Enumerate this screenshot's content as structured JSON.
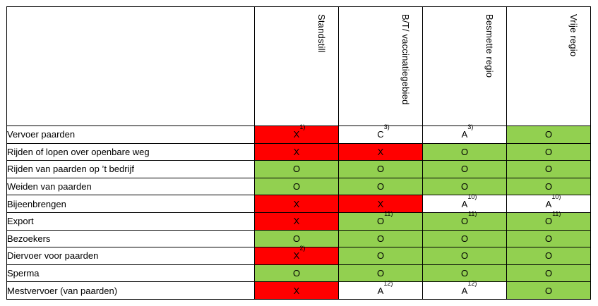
{
  "colors": {
    "red": "#ff0000",
    "green": "#92d050",
    "white": "#ffffff"
  },
  "columns": [
    "Standstill",
    "B/T/ vaccinatiegebied",
    "Besmette regio",
    "Vrije regio"
  ],
  "rows": [
    {
      "label": "Vervoer paarden",
      "cells": [
        {
          "v": "X",
          "n": "1)",
          "c": "red"
        },
        {
          "v": "C",
          "n": "3)",
          "c": "white"
        },
        {
          "v": "A",
          "n": "3)",
          "c": "white"
        },
        {
          "v": "O",
          "n": "",
          "c": "green"
        }
      ]
    },
    {
      "label": "Rijden of lopen over openbare weg",
      "cells": [
        {
          "v": "X",
          "n": "",
          "c": "red"
        },
        {
          "v": "X",
          "n": "",
          "c": "red"
        },
        {
          "v": "O",
          "n": "",
          "c": "green"
        },
        {
          "v": "O",
          "n": "",
          "c": "green"
        }
      ]
    },
    {
      "label": "Rijden van paarden op ’t bedrijf",
      "cells": [
        {
          "v": "O",
          "n": "",
          "c": "green"
        },
        {
          "v": "O",
          "n": "",
          "c": "green"
        },
        {
          "v": "O",
          "n": "",
          "c": "green"
        },
        {
          "v": "O",
          "n": "",
          "c": "green"
        }
      ]
    },
    {
      "label": "Weiden van paarden",
      "cells": [
        {
          "v": "O",
          "n": "",
          "c": "green"
        },
        {
          "v": "O",
          "n": "",
          "c": "green"
        },
        {
          "v": "O",
          "n": "",
          "c": "green"
        },
        {
          "v": "O",
          "n": "",
          "c": "green"
        }
      ]
    },
    {
      "label": "Bijeenbrengen",
      "cells": [
        {
          "v": "X",
          "n": "",
          "c": "red"
        },
        {
          "v": "X",
          "n": "",
          "c": "red"
        },
        {
          "v": "A",
          "n": "10)",
          "c": "white"
        },
        {
          "v": "A",
          "n": "10)",
          "c": "white"
        }
      ]
    },
    {
      "label": "Export",
      "cells": [
        {
          "v": "X",
          "n": "",
          "c": "red"
        },
        {
          "v": "O",
          "n": "11)",
          "c": "green"
        },
        {
          "v": "O",
          "n": "11)",
          "c": "green"
        },
        {
          "v": "O",
          "n": "11)",
          "c": "green"
        }
      ]
    },
    {
      "label": "Bezoekers",
      "cells": [
        {
          "v": "O",
          "n": "",
          "c": "green"
        },
        {
          "v": "O",
          "n": "",
          "c": "green"
        },
        {
          "v": "O",
          "n": "",
          "c": "green"
        },
        {
          "v": "O",
          "n": "",
          "c": "green"
        }
      ]
    },
    {
      "label": "Diervoer voor paarden",
      "cells": [
        {
          "v": "X",
          "n": "2)",
          "c": "red"
        },
        {
          "v": "O",
          "n": "",
          "c": "green"
        },
        {
          "v": "O",
          "n": "",
          "c": "green"
        },
        {
          "v": "O",
          "n": "",
          "c": "green"
        }
      ]
    },
    {
      "label": "Sperma",
      "cells": [
        {
          "v": "O",
          "n": "",
          "c": "green"
        },
        {
          "v": "O",
          "n": "",
          "c": "green"
        },
        {
          "v": "O",
          "n": "",
          "c": "green"
        },
        {
          "v": "O",
          "n": "",
          "c": "green"
        }
      ]
    },
    {
      "label": "Mestvervoer (van paarden)",
      "cells": [
        {
          "v": "X",
          "n": "",
          "c": "red"
        },
        {
          "v": "A",
          "n": "12)",
          "c": "white"
        },
        {
          "v": "A",
          "n": "12)",
          "c": "white"
        },
        {
          "v": "O",
          "n": "",
          "c": "green"
        }
      ]
    }
  ]
}
